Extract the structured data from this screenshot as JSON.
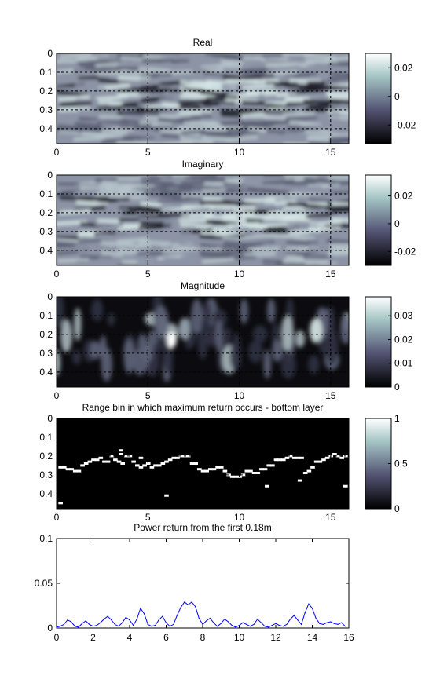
{
  "chart_data": [
    {
      "type": "heatmap",
      "title": "Real",
      "x_ticks": [
        "0",
        "5",
        "10",
        "15"
      ],
      "x_tick_values": [
        0,
        5,
        10,
        15
      ],
      "xlim": [
        0,
        16
      ],
      "y_ticks": [
        "0",
        "0.1",
        "0.2",
        "0.3",
        "0.4"
      ],
      "y_tick_values": [
        0,
        0.1,
        0.2,
        0.3,
        0.4
      ],
      "ylim": [
        0,
        0.48
      ],
      "colorbar": {
        "ticks": [
          "0.02",
          "0",
          "-0.02"
        ],
        "tick_values": [
          0.02,
          0,
          -0.02
        ],
        "clim": [
          -0.033,
          0.03
        ]
      },
      "colormap": "bone",
      "grid": true,
      "grid_style": "dashed"
    },
    {
      "type": "heatmap",
      "title": "Imaginary",
      "x_ticks": [
        "0",
        "5",
        "10",
        "15"
      ],
      "x_tick_values": [
        0,
        5,
        10,
        15
      ],
      "xlim": [
        0,
        16
      ],
      "y_ticks": [
        "0",
        "0.1",
        "0.2",
        "0.3",
        "0.4"
      ],
      "y_tick_values": [
        0,
        0.1,
        0.2,
        0.3,
        0.4
      ],
      "ylim": [
        0,
        0.48
      ],
      "colorbar": {
        "ticks": [
          "0.02",
          "0",
          "-0.02"
        ],
        "tick_values": [
          0.02,
          0,
          -0.02
        ],
        "clim": [
          -0.03,
          0.035
        ]
      },
      "colormap": "bone",
      "grid": true,
      "grid_style": "dashed"
    },
    {
      "type": "heatmap",
      "title": "Magnitude",
      "x_ticks": [
        "0",
        "5",
        "10",
        "15"
      ],
      "x_tick_values": [
        0,
        5,
        10,
        15
      ],
      "xlim": [
        0,
        16
      ],
      "y_ticks": [
        "0",
        "0.1",
        "0.2",
        "0.3",
        "0.4"
      ],
      "y_tick_values": [
        0,
        0.1,
        0.2,
        0.3,
        0.4
      ],
      "ylim": [
        0,
        0.48
      ],
      "colorbar": {
        "ticks": [
          "0.03",
          "0.02",
          "0.01",
          "0"
        ],
        "tick_values": [
          0.03,
          0.02,
          0.01,
          0
        ],
        "clim": [
          0,
          0.038
        ]
      },
      "colormap": "bone",
      "grid": true,
      "grid_style": "dashed"
    },
    {
      "type": "scatter",
      "title": "Range bin in which maximum return occurs - bottom layer",
      "x_ticks": [
        "0",
        "5",
        "10",
        "15"
      ],
      "x_tick_values": [
        0,
        5,
        10,
        15
      ],
      "xlim": [
        0,
        16
      ],
      "y_ticks": [
        "0",
        "0.1",
        "0.2",
        "0.3",
        "0.4"
      ],
      "y_tick_values": [
        0,
        0.1,
        0.2,
        0.3,
        0.4
      ],
      "ylim": [
        0,
        0.48
      ],
      "background": "#000000",
      "marker_color": "#ffffff",
      "colorbar": {
        "ticks": [
          "1",
          "0.5",
          "0"
        ],
        "tick_values": [
          1,
          0.5,
          0
        ],
        "clim": [
          0,
          1
        ]
      },
      "colormap": "bone",
      "x": [
        0.2,
        0.4,
        0.6,
        0.8,
        1.0,
        1.2,
        1.4,
        1.6,
        1.8,
        2.0,
        2.2,
        2.4,
        2.6,
        2.8,
        3.0,
        3.2,
        3.4,
        3.6,
        3.8,
        4.0,
        4.2,
        4.4,
        4.6,
        4.8,
        5.0,
        5.2,
        5.4,
        5.6,
        5.8,
        6.0,
        6.2,
        6.4,
        6.6,
        6.8,
        7.0,
        7.2,
        7.4,
        7.6,
        7.8,
        8.0,
        8.2,
        8.4,
        8.6,
        8.8,
        9.0,
        9.2,
        9.4,
        9.6,
        9.8,
        10.0,
        10.2,
        10.4,
        10.6,
        10.8,
        11.0,
        11.2,
        11.4,
        11.6,
        11.8,
        12.0,
        12.2,
        12.4,
        12.6,
        12.8,
        13.0,
        13.2,
        13.4,
        13.6,
        13.8,
        14.0,
        14.2,
        14.4,
        14.6,
        14.8,
        15.0,
        15.2,
        15.4,
        15.6,
        15.8,
        3.5,
        4.6,
        0.2,
        15.8,
        13.3,
        6.0,
        3.5,
        11.5
      ],
      "y": [
        0.26,
        0.26,
        0.27,
        0.27,
        0.28,
        0.28,
        0.25,
        0.24,
        0.23,
        0.22,
        0.22,
        0.21,
        0.23,
        0.23,
        0.2,
        0.22,
        0.23,
        0.24,
        0.2,
        0.2,
        0.23,
        0.25,
        0.26,
        0.25,
        0.24,
        0.26,
        0.25,
        0.25,
        0.24,
        0.23,
        0.22,
        0.21,
        0.21,
        0.2,
        0.2,
        0.2,
        0.24,
        0.24,
        0.27,
        0.28,
        0.28,
        0.27,
        0.27,
        0.26,
        0.26,
        0.28,
        0.3,
        0.31,
        0.31,
        0.31,
        0.3,
        0.28,
        0.28,
        0.29,
        0.29,
        0.27,
        0.27,
        0.25,
        0.25,
        0.22,
        0.22,
        0.22,
        0.21,
        0.2,
        0.21,
        0.21,
        0.21,
        0.29,
        0.28,
        0.26,
        0.23,
        0.23,
        0.22,
        0.21,
        0.2,
        0.19,
        0.2,
        0.21,
        0.2,
        0.19,
        0.21,
        0.45,
        0.36,
        0.33,
        0.41,
        0.17,
        0.36
      ]
    },
    {
      "type": "line",
      "title": "Power return from the first 0.18m",
      "x_ticks": [
        "0",
        "2",
        "4",
        "6",
        "8",
        "10",
        "12",
        "14",
        "16"
      ],
      "x_tick_values": [
        0,
        2,
        4,
        6,
        8,
        10,
        12,
        14,
        16
      ],
      "xlim": [
        0,
        16
      ],
      "y_ticks": [
        "0",
        "0.05",
        "0.1"
      ],
      "y_tick_values": [
        0,
        0.05,
        0.1
      ],
      "ylim": [
        0,
        0.1
      ],
      "grid": false,
      "series": [
        {
          "color": "#0000ff",
          "x": [
            0,
            0.2,
            0.4,
            0.6,
            0.8,
            1.0,
            1.2,
            1.4,
            1.6,
            1.8,
            2.0,
            2.2,
            2.4,
            2.6,
            2.8,
            3.0,
            3.2,
            3.4,
            3.6,
            3.8,
            4.0,
            4.2,
            4.4,
            4.6,
            4.8,
            5.0,
            5.2,
            5.4,
            5.6,
            5.8,
            6.0,
            6.2,
            6.4,
            6.6,
            6.8,
            7.0,
            7.2,
            7.4,
            7.6,
            7.8,
            8.0,
            8.2,
            8.4,
            8.6,
            8.8,
            9.0,
            9.2,
            9.4,
            9.6,
            9.8,
            10.0,
            10.2,
            10.4,
            10.6,
            10.8,
            11.0,
            11.2,
            11.4,
            11.6,
            11.8,
            12.0,
            12.2,
            12.4,
            12.6,
            12.8,
            13.0,
            13.2,
            13.4,
            13.6,
            13.8,
            14.0,
            14.2,
            14.4,
            14.6,
            14.8,
            15.0,
            15.2,
            15.4,
            15.6,
            15.8
          ],
          "y": [
            0.001,
            0.002,
            0.004,
            0.009,
            0.007,
            0.002,
            0.001,
            0.005,
            0.008,
            0.004,
            0.002,
            0.003,
            0.006,
            0.01,
            0.013,
            0.009,
            0.004,
            0.002,
            0.006,
            0.012,
            0.009,
            0.003,
            0.01,
            0.022,
            0.016,
            0.004,
            0.002,
            0.003,
            0.009,
            0.013,
            0.006,
            0.002,
            0.004,
            0.014,
            0.023,
            0.029,
            0.026,
            0.029,
            0.024,
            0.011,
            0.004,
            0.008,
            0.011,
            0.006,
            0.002,
            0.005,
            0.01,
            0.007,
            0.003,
            0.001,
            0.003,
            0.006,
            0.004,
            0.002,
            0.004,
            0.01,
            0.006,
            0.002,
            0.001,
            0.003,
            0.005,
            0.003,
            0.002,
            0.004,
            0.01,
            0.014,
            0.009,
            0.004,
            0.017,
            0.027,
            0.022,
            0.011,
            0.005,
            0.004,
            0.006,
            0.007,
            0.005,
            0.004,
            0.006,
            0.002
          ]
        }
      ]
    }
  ]
}
